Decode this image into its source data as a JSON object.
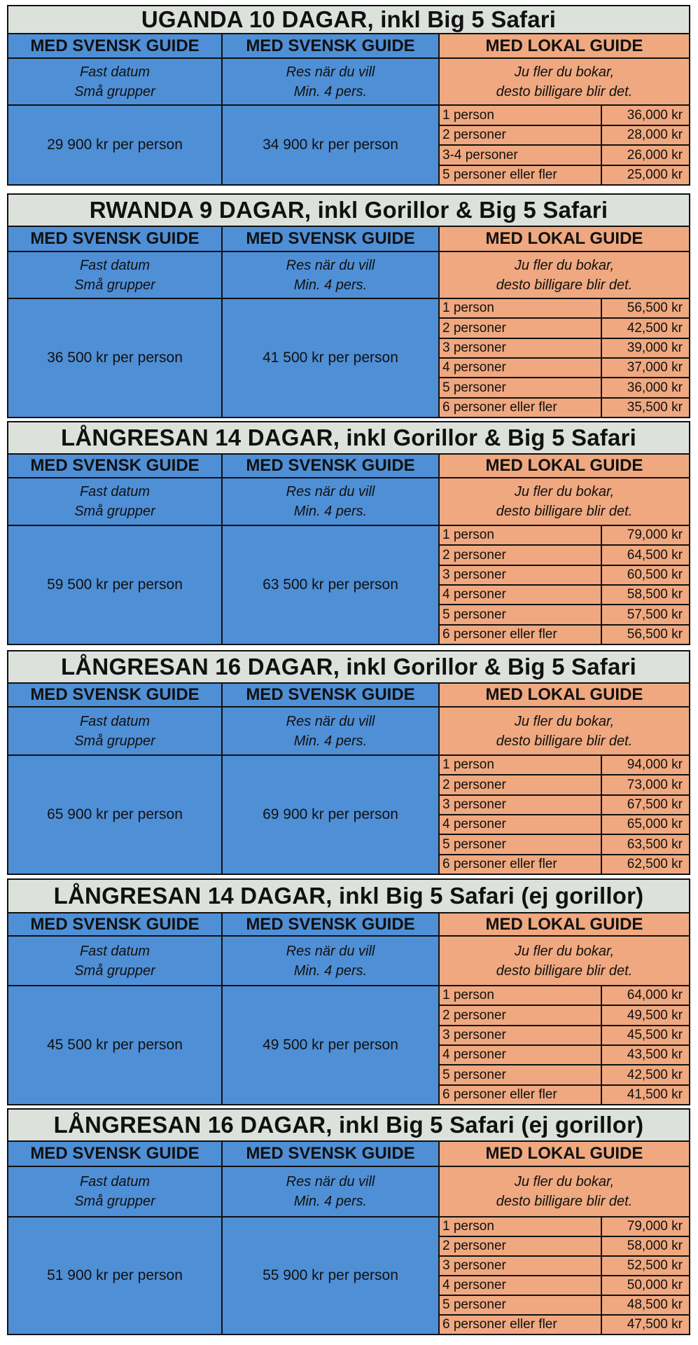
{
  "colors": {
    "title_bg": "#dde1dc",
    "swedish_guide_bg": "#4f8fd6",
    "local_guide_bg": "#efa87f",
    "border": "#111111"
  },
  "labels": {
    "swedish_guide": "MED SVENSK GUIDE",
    "local_guide": "MED LOKAL GUIDE",
    "fixed_line1": "Fast datum",
    "fixed_line2": "Små grupper",
    "flex_line1": "Res när du vill",
    "flex_line2": "Min. 4 pers.",
    "local_line1": "Ju fler du bokar,",
    "local_line2": "desto billigare blir det."
  },
  "sections": [
    {
      "title": "UGANDA 10 DAGAR, inkl Big 5 Safari",
      "price_fixed": "29 900 kr per person",
      "price_flex": "34 900 kr per person",
      "tiers": [
        [
          "1 person",
          "36,000 kr"
        ],
        [
          "2 personer",
          "28,000 kr"
        ],
        [
          "3-4 personer",
          "26,000 kr"
        ],
        [
          "5 personer eller fler",
          "25,000 kr"
        ]
      ]
    },
    {
      "title": "RWANDA 9 DAGAR, inkl Gorillor & Big 5 Safari",
      "price_fixed": "36 500 kr per person",
      "price_flex": "41 500 kr per person",
      "tiers": [
        [
          "1 person",
          "56,500 kr"
        ],
        [
          "2 personer",
          "42,500 kr"
        ],
        [
          "3 personer",
          "39,000 kr"
        ],
        [
          "4 personer",
          "37,000 kr"
        ],
        [
          "5 personer",
          "36,000 kr"
        ],
        [
          "6 personer eller fler",
          "35,500 kr"
        ]
      ]
    },
    {
      "title": "LÅNGRESAN 14 DAGAR, inkl Gorillor & Big 5 Safari",
      "price_fixed": "59 500 kr per person",
      "price_flex": "63 500 kr per person",
      "tiers": [
        [
          "1 person",
          "79,000 kr"
        ],
        [
          "2 personer",
          "64,500 kr"
        ],
        [
          "3 personer",
          "60,500 kr"
        ],
        [
          "4 personer",
          "58,500 kr"
        ],
        [
          "5 personer",
          "57,500 kr"
        ],
        [
          "6 personer eller fler",
          "56,500 kr"
        ]
      ]
    },
    {
      "title": "LÅNGRESAN 16 DAGAR, inkl Gorillor & Big 5 Safari",
      "price_fixed": "65 900 kr per person",
      "price_flex": "69 900 kr per person",
      "tiers": [
        [
          "1 person",
          "94,000 kr"
        ],
        [
          "2 personer",
          "73,000 kr"
        ],
        [
          "3 personer",
          "67,500 kr"
        ],
        [
          "4 personer",
          "65,000 kr"
        ],
        [
          "5 personer",
          "63,500 kr"
        ],
        [
          "6 personer eller fler",
          "62,500 kr"
        ]
      ]
    },
    {
      "title": "LÅNGRESAN 14 DAGAR, inkl Big 5 Safari (ej gorillor)",
      "price_fixed": "45 500 kr per person",
      "price_flex": "49 500 kr per person",
      "tiers": [
        [
          "1 person",
          "64,000 kr"
        ],
        [
          "2 personer",
          "49,500 kr"
        ],
        [
          "3 personer",
          "45,500 kr"
        ],
        [
          "4 personer",
          "43,500 kr"
        ],
        [
          "5 personer",
          "42,500 kr"
        ],
        [
          "6 personer eller fler",
          "41,500 kr"
        ]
      ]
    },
    {
      "title": "LÅNGRESAN 16 DAGAR, inkl Big 5 Safari (ej gorillor)",
      "price_fixed": "51  900 kr per person",
      "price_flex": "55  900 kr per person",
      "tiers": [
        [
          "1 person",
          "79,000 kr"
        ],
        [
          "2 personer",
          "58,000 kr"
        ],
        [
          "3 personer",
          "52,500 kr"
        ],
        [
          "4 personer",
          "50,000 kr"
        ],
        [
          "5 personer",
          "48,500 kr"
        ],
        [
          "6 personer eller fler",
          "47,500 kr"
        ]
      ]
    }
  ]
}
